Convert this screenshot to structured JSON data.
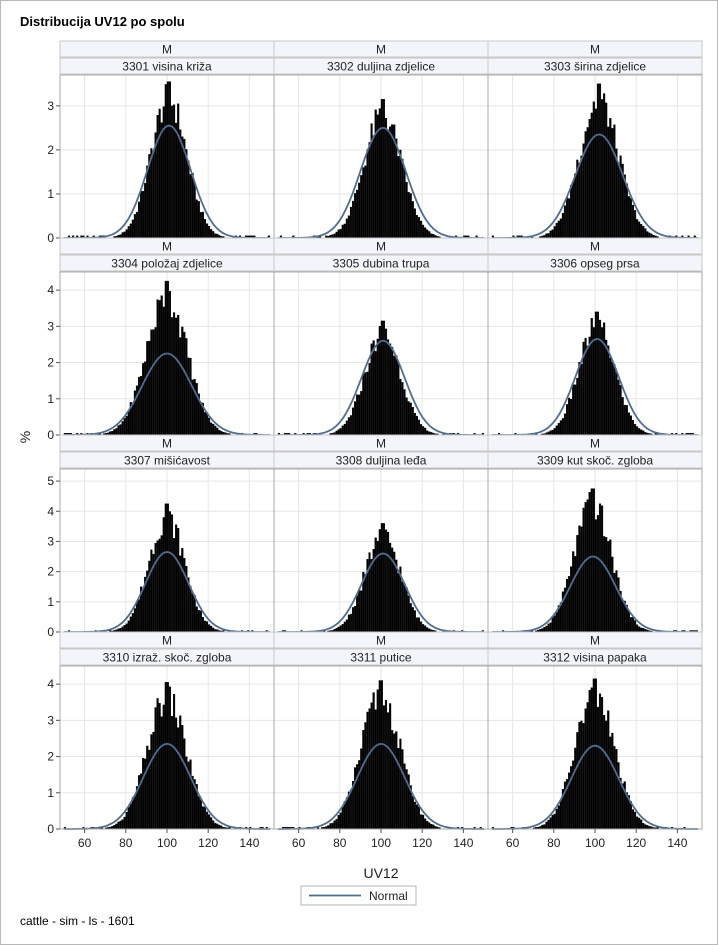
{
  "title": "Distribucija UV12 po spolu",
  "footnote": "cattle - sim - ls - 1601",
  "colors": {
    "bar": "#000000",
    "normal_curve": "#4f6d8f",
    "grid": "#e6e6e6",
    "header_bg": "#f3f5fa"
  },
  "chart_data": {
    "type": "bar",
    "xlabel": "UV12",
    "ylabel": "%",
    "xlim": [
      50,
      150
    ],
    "x_ticks": [
      60,
      80,
      100,
      120,
      140
    ],
    "legend": {
      "entries": [
        "Normal"
      ],
      "placement": "bottom-center"
    },
    "grid": true,
    "rows": [
      {
        "ylim": [
          0,
          3.7
        ],
        "y_ticks": [
          0,
          1,
          2,
          3
        ]
      },
      {
        "ylim": [
          0,
          4.5
        ],
        "y_ticks": [
          0,
          1,
          2,
          3,
          4
        ]
      },
      {
        "ylim": [
          0,
          5.4
        ],
        "y_ticks": [
          0,
          1,
          2,
          3,
          4,
          5
        ]
      },
      {
        "ylim": [
          0,
          4.5
        ],
        "y_ticks": [
          0,
          1,
          2,
          3,
          4
        ]
      }
    ],
    "panels": [
      {
        "sex": "M",
        "trait": "3301 visina križa",
        "mean": 101,
        "sd": 10.5,
        "peak": 3.55,
        "normal_peak": 2.55
      },
      {
        "sex": "M",
        "trait": "3302 duljina zdjelice",
        "mean": 101,
        "sd": 11,
        "peak": 3.15,
        "normal_peak": 2.5
      },
      {
        "sex": "M",
        "trait": "3303 širina zdjelice",
        "mean": 102,
        "sd": 11.5,
        "peak": 3.5,
        "normal_peak": 2.35
      },
      {
        "sex": "M",
        "trait": "3304 položaj zdjelice",
        "mean": 100,
        "sd": 12,
        "peak": 4.25,
        "normal_peak": 2.25
      },
      {
        "sex": "M",
        "trait": "3305 dubina trupa",
        "mean": 101,
        "sd": 10.5,
        "peak": 3.15,
        "normal_peak": 2.6
      },
      {
        "sex": "M",
        "trait": "3306 opseg prsa",
        "mean": 101,
        "sd": 10.5,
        "peak": 3.4,
        "normal_peak": 2.65
      },
      {
        "sex": "M",
        "trait": "3307 mišićavost",
        "mean": 100,
        "sd": 10.5,
        "peak": 4.25,
        "normal_peak": 2.65
      },
      {
        "sex": "M",
        "trait": "3308 duljina leđa",
        "mean": 101,
        "sd": 10.5,
        "peak": 3.6,
        "normal_peak": 2.6
      },
      {
        "sex": "M",
        "trait": "3309 kut skoč. zgloba",
        "mean": 99,
        "sd": 11,
        "peak": 4.75,
        "normal_peak": 2.5
      },
      {
        "sex": "M",
        "trait": "3310 izraž. skoč. zgloba",
        "mean": 100,
        "sd": 11.5,
        "peak": 4.05,
        "normal_peak": 2.35
      },
      {
        "sex": "M",
        "trait": "3311 putice",
        "mean": 100,
        "sd": 11.5,
        "peak": 4.1,
        "normal_peak": 2.35
      },
      {
        "sex": "M",
        "trait": "3312 visina papaka",
        "mean": 100,
        "sd": 11.5,
        "peak": 4.15,
        "normal_peak": 2.3
      }
    ]
  }
}
